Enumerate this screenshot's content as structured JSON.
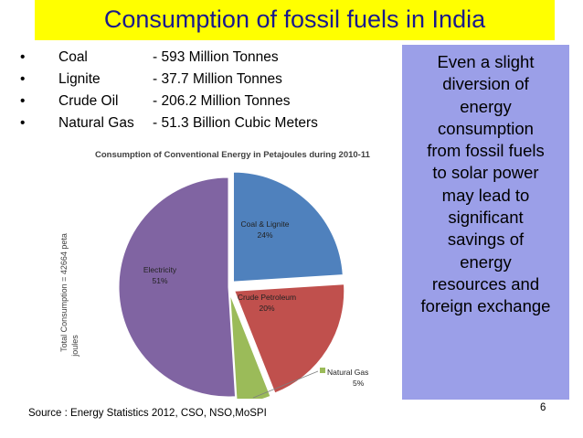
{
  "slide": {
    "title": "Consumption of fossil fuels in India",
    "bullet_glyph": "•",
    "bullets": [
      {
        "name": "Coal",
        "value": "- 593 Million Tonnes"
      },
      {
        "name": "Lignite",
        "value": "- 37.7 Million Tonnes"
      },
      {
        "name": "Crude Oil",
        "value": "- 206.2 Million Tonnes"
      },
      {
        "name": "Natural Gas",
        "value": "- 51.3 Billion Cubic Meters"
      }
    ],
    "side_note_lines": [
      "Even a slight",
      "diversion of",
      "energy",
      "consumption",
      "from fossil fuels",
      "to solar power",
      "may lead to",
      "significant",
      "savings of",
      "energy",
      "resources and",
      "foreign exchange"
    ],
    "source": "Source : Energy Statistics 2012, CSO, NSO,MoSPI",
    "page_number": "6"
  },
  "colors": {
    "title_bg": "#ffff00",
    "title_text": "#1a1a8c",
    "side_box": "#9b9fe8"
  },
  "chart_data": {
    "type": "pie",
    "title": "Consumption of Conventional Energy in Petajoules during 2010-11",
    "ylabel": "Total Consumption = 42664 peta joules",
    "ylabel_lines": [
      "Total Consumption = 42664 peta",
      "joules"
    ],
    "slices": [
      {
        "label": "Coal & Lignite",
        "value": 24,
        "pct_label": "24%",
        "color": "#4f81bd"
      },
      {
        "label": "Crude Petroleum",
        "value": 20,
        "pct_label": "20%",
        "color": "#c0504d"
      },
      {
        "label": "Natural Gas",
        "value": 5,
        "pct_label": "5%",
        "color": "#9bbb59"
      },
      {
        "label": "Electricity",
        "value": 51,
        "pct_label": "51%",
        "color": "#8064a2"
      }
    ]
  }
}
